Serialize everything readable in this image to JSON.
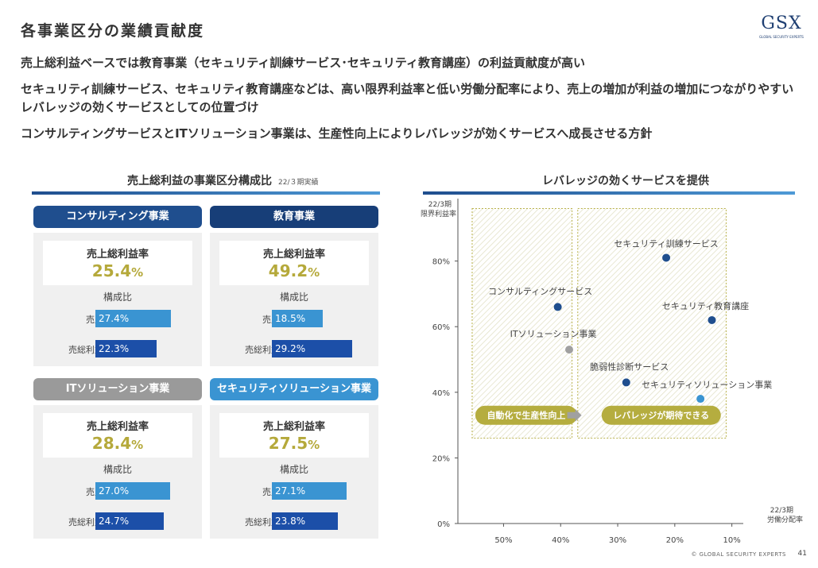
{
  "title": "各事業区分の業績貢献度",
  "logo": {
    "main": "GSX",
    "sub": "GLOBAL SECURITY EXPERTS"
  },
  "bullets": [
    "売上総利益ベースでは教育事業（セキュリティ訓練サービス･セキュリティ教育講座）の利益貢献度が高い",
    "セキュリティ訓練サービス、セキュリティ教育講座などは、高い限界利益率と低い労働分配率により、売上の増加が利益の増加につながりやすい",
    "レバレッジの効くサービスとしての位置づけ",
    "コンサルティングサービスとITソリューション事業は、生産性向上によりレバレッジが効くサービスへ成長させる方針"
  ],
  "left_section": {
    "title": "売上総利益の事業区分構成比",
    "note": "22/３期実績"
  },
  "segments": [
    {
      "name": "コンサルティング事業",
      "color": "#1f4e8e",
      "margin_label": "売上総利益率",
      "margin_value": "25.4",
      "pct": "%",
      "comp_title": "構成比",
      "sales_label": "売上",
      "sales": 27.4,
      "sales_text": "27.4%",
      "gp_label": "売総利益",
      "gp": 22.3,
      "gp_text": "22.3%"
    },
    {
      "name": "教育事業",
      "color": "#173e78",
      "margin_label": "売上総利益率",
      "margin_value": "49.2",
      "pct": "%",
      "comp_title": "構成比",
      "sales_label": "売上",
      "sales": 18.5,
      "sales_text": "18.5%",
      "gp_label": "売総利益",
      "gp": 29.2,
      "gp_text": "29.2%"
    },
    {
      "name": "ITソリューション事業",
      "color": "#9a9a9a",
      "margin_label": "売上総利益率",
      "margin_value": "28.4",
      "pct": "%",
      "comp_title": "構成比",
      "sales_label": "売上",
      "sales": 27.0,
      "sales_text": "27.0%",
      "gp_label": "売総利益",
      "gp": 24.7,
      "gp_text": "24.7%"
    },
    {
      "name": "セキュリティソリューション事業",
      "color": "#3a94d2",
      "margin_label": "売上総利益率",
      "margin_value": "27.5",
      "pct": "%",
      "comp_title": "構成比",
      "sales_label": "売上",
      "sales": 27.1,
      "sales_text": "27.1%",
      "gp_label": "売総利益",
      "gp": 23.8,
      "gp_text": "23.8%"
    }
  ],
  "right_section": {
    "title": "レバレッジの効くサービスを提供"
  },
  "chart_data": {
    "type": "scatter",
    "title": "レバレッジの効くサービスを提供",
    "ylabel_line1": "22/3期",
    "ylabel_line2": "限界利益率",
    "xlabel_line1": "22/3期",
    "xlabel_line2": "労働分配率",
    "x_reversed": true,
    "xlim": [
      58,
      8
    ],
    "ylim": [
      0,
      100
    ],
    "x_ticks": [
      50,
      40,
      30,
      20,
      10
    ],
    "x_tick_labels": [
      "50%",
      "40%",
      "30%",
      "20%",
      "10%"
    ],
    "y_ticks": [
      0,
      20,
      40,
      60,
      80
    ],
    "y_tick_labels": [
      "0%",
      "20%",
      "40%",
      "60%",
      "80%"
    ],
    "zones": [
      {
        "label": "自動化で生産性向上",
        "x_range": [
          55.5,
          38
        ],
        "y_range": [
          26,
          96
        ]
      },
      {
        "label": "レバレッジが期待できる",
        "x_range": [
          37,
          11
        ],
        "y_range": [
          26,
          96
        ]
      }
    ],
    "points": [
      {
        "name": "セキュリティ訓練サービス",
        "x": 21.5,
        "y": 81,
        "color": "#1f4e8e"
      },
      {
        "name": "コンサルティングサービス",
        "x": 40.5,
        "y": 66,
        "color": "#1f4e8e"
      },
      {
        "name": "セキュリティ教育講座",
        "x": 13.5,
        "y": 62,
        "color": "#1f4e8e"
      },
      {
        "name": "ITソリューション事業",
        "x": 38.5,
        "y": 53,
        "color": "#a0a0a0"
      },
      {
        "name": "脆弱性診断サービス",
        "x": 28.5,
        "y": 43,
        "color": "#1f4e8e"
      },
      {
        "name": "セキュリティソリューション事業",
        "x": 15.5,
        "y": 38,
        "color": "#3a94d2"
      }
    ],
    "grid": false,
    "legend": "none"
  },
  "footer": "© GLOBAL SECURITY EXPERTS",
  "page_number": "41"
}
